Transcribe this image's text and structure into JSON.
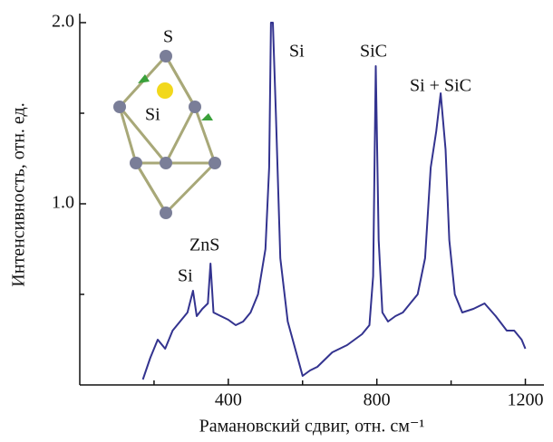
{
  "chart_data": {
    "type": "line",
    "x_label": "Рамановский сдвиг, отн. см⁻¹",
    "y_label": "Интенсивность, отн. ед.",
    "annotations": [
      "S",
      "Si",
      "Si",
      "ZnS",
      "Si",
      "SiC",
      "Si + SiC"
    ],
    "xlim": [
      0,
      1250
    ],
    "ylim": [
      0,
      2.05
    ],
    "xticks": [
      400,
      800,
      1200
    ],
    "xminor": [
      200,
      600,
      1000
    ],
    "yticks": [
      {
        "value": 1,
        "label": "1.0"
      },
      {
        "value": 2,
        "label": "2.0"
      }
    ],
    "yminor": [
      0.5,
      1.5
    ],
    "series": [
      {
        "color": "#33338f",
        "x": [
          170,
          190,
          210,
          230,
          250,
          270,
          290,
          305,
          315,
          330,
          345,
          352,
          360,
          380,
          400,
          420,
          440,
          460,
          480,
          500,
          510,
          515,
          520,
          528,
          540,
          560,
          580,
          600,
          620,
          640,
          660,
          680,
          700,
          720,
          740,
          760,
          780,
          790,
          797,
          805,
          815,
          830,
          850,
          870,
          890,
          910,
          930,
          945,
          960,
          972,
          985,
          995,
          1010,
          1030,
          1060,
          1090,
          1120,
          1150,
          1170,
          1190,
          1200
        ],
        "values": [
          0.03,
          0.15,
          0.25,
          0.2,
          0.3,
          0.35,
          0.4,
          0.52,
          0.38,
          0.42,
          0.45,
          0.67,
          0.4,
          0.38,
          0.36,
          0.33,
          0.35,
          0.4,
          0.5,
          0.75,
          1.2,
          2.0,
          2.0,
          1.5,
          0.7,
          0.35,
          0.2,
          0.05,
          0.08,
          0.1,
          0.14,
          0.18,
          0.2,
          0.22,
          0.25,
          0.28,
          0.33,
          0.6,
          1.76,
          0.8,
          0.4,
          0.35,
          0.38,
          0.4,
          0.45,
          0.5,
          0.7,
          1.2,
          1.4,
          1.61,
          1.3,
          0.8,
          0.5,
          0.4,
          0.42,
          0.45,
          0.38,
          0.3,
          0.3,
          0.25,
          0.2
        ]
      }
    ]
  }
}
